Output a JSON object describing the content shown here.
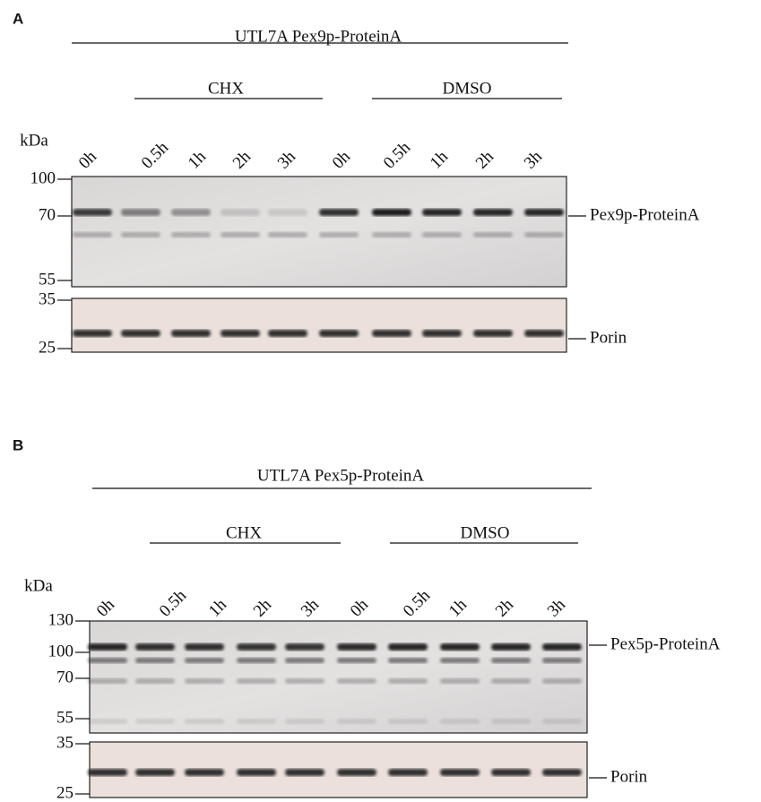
{
  "panels": [
    {
      "label": "A",
      "title": "UTL7A Pex9p-ProteinA",
      "groups": [
        "CHX",
        "DMSO"
      ],
      "kda_label": "kDa",
      "lanes": [
        "0h",
        "0.5h",
        "1h",
        "2h",
        "3h",
        "0h",
        "0.5h",
        "1h",
        "2h",
        "3h"
      ],
      "markers_top": [
        "100",
        "70",
        "55"
      ],
      "markers_bottom": [
        "35",
        "25"
      ],
      "band_labels": [
        "Pex9p-ProteinA",
        "Porin"
      ]
    },
    {
      "label": "B",
      "title": "UTL7A Pex5p-ProteinA",
      "groups": [
        "CHX",
        "DMSO"
      ],
      "kda_label": "kDa",
      "lanes": [
        "0h",
        "0.5h",
        "1h",
        "2h",
        "3h",
        "0h",
        "0.5h",
        "1h",
        "2h",
        "3h"
      ],
      "markers_top": [
        "130",
        "100",
        "70",
        "55"
      ],
      "markers_bottom": [
        "35",
        "25"
      ],
      "band_labels": [
        "Pex5p-ProteinA",
        "Porin"
      ]
    }
  ]
}
